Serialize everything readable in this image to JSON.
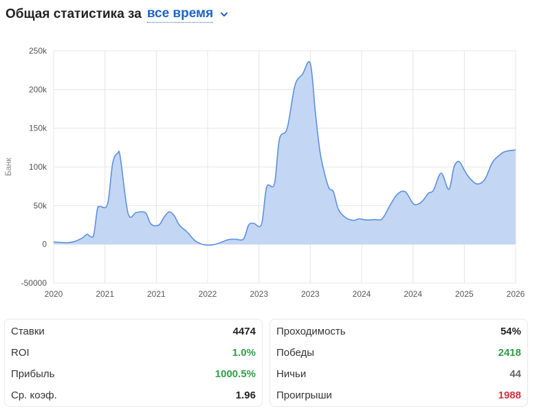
{
  "header": {
    "title": "Общая статистика за",
    "period": "все время"
  },
  "chart_data": {
    "type": "area",
    "title": "",
    "xlabel": "",
    "ylabel": "Банк",
    "ylim": [
      -50000,
      250000
    ],
    "yticks": [
      -50000,
      0,
      50000,
      100000,
      150000,
      200000,
      250000
    ],
    "ytick_labels": [
      "-50000",
      "0",
      "50k",
      "100k",
      "150k",
      "200k",
      "250k"
    ],
    "xtick_labels": [
      "2020",
      "2021",
      "2021",
      "2022",
      "2023",
      "2023",
      "2024",
      "2024",
      "2025",
      "2026"
    ],
    "grid": true,
    "x_range": [
      0,
      9
    ],
    "series": [
      {
        "color": "#5b8fdf",
        "fill": "#c3d6f4",
        "x": [
          0,
          0.15,
          0.25,
          0.4,
          0.55,
          0.65,
          0.7,
          0.78,
          0.85,
          0.9,
          1.05,
          1.15,
          1.25,
          1.3,
          1.45,
          1.6,
          1.7,
          1.8,
          1.9,
          2.05,
          2.15,
          2.25,
          2.35,
          2.45,
          2.6,
          2.75,
          2.9,
          3.05,
          3.2,
          3.4,
          3.55,
          3.7,
          3.8,
          3.9,
          4.05,
          4.15,
          4.3,
          4.4,
          4.55,
          4.7,
          4.85,
          5.0,
          5.1,
          5.2,
          5.35,
          5.45,
          5.55,
          5.7,
          5.85,
          5.95,
          6.1,
          6.25,
          6.4,
          6.55,
          6.7,
          6.85,
          7.0,
          7.1,
          7.2,
          7.3,
          7.4,
          7.55,
          7.7,
          7.8,
          7.9,
          8.0,
          8.1,
          8.25,
          8.4,
          8.55,
          8.7,
          8.8,
          9.0
        ],
        "y": [
          3000,
          2500,
          2000,
          3500,
          8000,
          13000,
          11000,
          12000,
          45000,
          49000,
          52000,
          105000,
          118000,
          112000,
          40000,
          41000,
          42000,
          40000,
          26000,
          25000,
          35000,
          42000,
          37000,
          25000,
          16000,
          5000,
          0,
          -1000,
          1000,
          6000,
          6500,
          7000,
          25000,
          27000,
          26000,
          74000,
          78000,
          136000,
          150000,
          205000,
          220000,
          234000,
          170000,
          115000,
          75000,
          68000,
          45000,
          34000,
          31000,
          33000,
          31500,
          32000,
          33000,
          50000,
          65000,
          68000,
          53000,
          52000,
          57000,
          66000,
          70000,
          92000,
          71000,
          100000,
          107000,
          96000,
          86000,
          78000,
          84000,
          106000,
          116000,
          120000,
          122000
        ]
      }
    ]
  },
  "stats_left": [
    {
      "label": "Ставки",
      "value": "4474",
      "color": "default"
    },
    {
      "label": "ROI",
      "value": "1.0%",
      "color": "green"
    },
    {
      "label": "Прибыль",
      "value": "1000.5%",
      "color": "green"
    },
    {
      "label": "Ср. коэф.",
      "value": "1.96",
      "color": "default"
    }
  ],
  "stats_right": [
    {
      "label": "Проходимость",
      "value": "54%",
      "color": "default"
    },
    {
      "label": "Победы",
      "value": "2418",
      "color": "green"
    },
    {
      "label": "Ничьи",
      "value": "44",
      "color": "gray"
    },
    {
      "label": "Проигрыши",
      "value": "1988",
      "color": "red"
    }
  ]
}
